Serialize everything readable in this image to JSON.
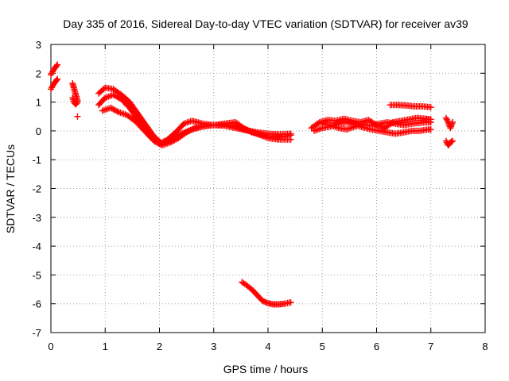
{
  "chart_data": {
    "type": "scatter",
    "title": "Day 335 of 2016, Sidereal Day-to-day VTEC variation (SDTVAR) for receiver av39",
    "xlabel": "GPS time / hours",
    "ylabel": "SDTVAR / TECUs",
    "xlim": [
      0,
      8
    ],
    "ylim": [
      -7,
      3
    ],
    "x_ticks": [
      "0",
      "1",
      "2",
      "3",
      "4",
      "5",
      "6",
      "7",
      "8"
    ],
    "y_ticks": [
      "-7",
      "-6",
      "-5",
      "-4",
      "-3",
      "-2",
      "-1",
      "0",
      "1",
      "2",
      "3"
    ],
    "grid": true,
    "marker": "+",
    "color": "#ff0000",
    "series": [
      {
        "x": [
          0.0,
          0.03,
          0.06,
          0.09,
          0.12
        ],
        "y": [
          1.45,
          1.55,
          1.65,
          1.72,
          1.8
        ]
      },
      {
        "x": [
          0.0,
          0.03,
          0.06,
          0.09,
          0.12
        ],
        "y": [
          1.95,
          2.05,
          2.15,
          2.22,
          2.3
        ]
      },
      {
        "x": [
          0.4,
          0.43,
          0.46,
          0.49
        ],
        "y": [
          1.65,
          1.45,
          1.25,
          1.05
        ]
      },
      {
        "x": [
          0.4,
          0.43,
          0.46,
          0.49
        ],
        "y": [
          1.15,
          0.98,
          0.92,
          1.0
        ]
      },
      {
        "x": [
          0.49
        ],
        "y": [
          0.5
        ]
      },
      {
        "x": [
          0.88,
          1.0,
          1.15,
          1.3,
          1.45,
          1.6,
          1.75,
          1.9,
          2.05,
          2.2,
          2.4,
          2.6,
          2.8,
          3.0,
          3.2,
          3.4,
          3.55,
          3.7,
          3.85,
          4.0,
          4.15,
          4.3,
          4.42
        ],
        "y": [
          1.3,
          1.5,
          1.45,
          1.25,
          1.0,
          0.6,
          0.2,
          -0.2,
          -0.45,
          -0.35,
          -0.1,
          0.05,
          0.15,
          0.2,
          0.25,
          0.3,
          0.1,
          -0.05,
          -0.12,
          -0.18,
          -0.2,
          -0.2,
          -0.15
        ]
      },
      {
        "x": [
          0.88,
          1.0,
          1.15,
          1.3,
          1.45,
          1.6,
          1.75,
          1.9,
          2.05,
          2.2,
          2.35,
          2.5,
          2.65,
          2.8,
          3.0,
          3.2,
          3.35,
          3.5,
          3.65,
          3.8,
          4.0,
          4.2,
          4.42
        ],
        "y": [
          0.9,
          1.15,
          1.25,
          1.1,
          0.8,
          0.4,
          0.0,
          -0.35,
          -0.5,
          -0.4,
          -0.25,
          -0.05,
          0.1,
          0.18,
          0.2,
          0.22,
          0.18,
          0.1,
          0.0,
          -0.1,
          -0.25,
          -0.3,
          -0.3
        ]
      },
      {
        "x": [
          0.95,
          1.1,
          1.25,
          1.4,
          1.55,
          1.7,
          1.85,
          2.0,
          2.15,
          2.3,
          2.45,
          2.6,
          2.8,
          3.0,
          3.2,
          3.4,
          3.6,
          3.8,
          4.0,
          4.2,
          4.42
        ],
        "y": [
          0.7,
          0.8,
          0.65,
          0.55,
          0.35,
          0.05,
          -0.25,
          -0.45,
          -0.3,
          -0.05,
          0.25,
          0.35,
          0.25,
          0.2,
          0.18,
          0.1,
          0.02,
          -0.05,
          -0.1,
          -0.12,
          -0.1
        ]
      },
      {
        "x": [
          3.52,
          3.6,
          3.7,
          3.8,
          3.9,
          4.0,
          4.1,
          4.2,
          4.3,
          4.42
        ],
        "y": [
          -5.25,
          -5.35,
          -5.5,
          -5.7,
          -5.9,
          -5.98,
          -6.02,
          -6.02,
          -6.0,
          -5.95
        ]
      },
      {
        "x": [
          4.8,
          4.95,
          5.1,
          5.25,
          5.4,
          5.55,
          5.7,
          5.85,
          6.0,
          6.15,
          6.3,
          6.45,
          6.6,
          6.75,
          6.9,
          7.0
        ],
        "y": [
          0.1,
          0.3,
          0.38,
          0.35,
          0.42,
          0.35,
          0.3,
          0.38,
          0.2,
          0.1,
          0.3,
          0.35,
          0.4,
          0.45,
          0.42,
          0.4
        ]
      },
      {
        "x": [
          4.85,
          5.0,
          5.15,
          5.3,
          5.45,
          5.6,
          5.75,
          5.9,
          6.05,
          6.2,
          6.35,
          6.5,
          6.65,
          6.8,
          6.95,
          7.0
        ],
        "y": [
          0.0,
          0.1,
          0.15,
          0.25,
          0.3,
          0.22,
          0.12,
          0.05,
          0.0,
          -0.05,
          -0.1,
          -0.05,
          0.0,
          0.0,
          0.05,
          0.05
        ]
      },
      {
        "x": [
          5.0,
          5.15,
          5.3,
          5.45,
          5.6,
          5.75,
          5.9,
          6.05,
          6.2,
          6.35,
          6.5,
          6.65,
          6.8,
          6.95,
          7.0
        ],
        "y": [
          0.25,
          0.2,
          0.1,
          0.05,
          0.15,
          0.22,
          0.18,
          0.25,
          0.3,
          0.25,
          0.2,
          0.25,
          0.28,
          0.3,
          0.3
        ]
      },
      {
        "x": [
          6.25,
          6.4,
          6.55,
          6.7,
          6.85,
          7.0
        ],
        "y": [
          0.9,
          0.9,
          0.88,
          0.85,
          0.85,
          0.82
        ]
      },
      {
        "x": [
          7.28,
          7.32,
          7.36,
          7.4
        ],
        "y": [
          0.45,
          0.3,
          0.1,
          0.3
        ]
      },
      {
        "x": [
          7.28,
          7.32,
          7.36,
          7.4
        ],
        "y": [
          -0.35,
          -0.5,
          -0.4,
          -0.35
        ]
      }
    ]
  }
}
